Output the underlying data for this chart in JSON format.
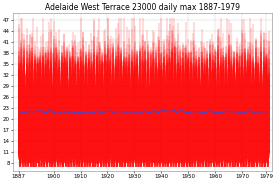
{
  "title": "Adelaide West Terrace 23000 daily max 1887-1979",
  "year_start": 1887,
  "year_end": 1979,
  "yticks": [
    8,
    11,
    14,
    17,
    20,
    23,
    26,
    29,
    32,
    35,
    38,
    41,
    44,
    47
  ],
  "ylim": [
    6,
    49
  ],
  "xlim": [
    1885,
    1981
  ],
  "xticks": [
    1887,
    1900,
    1910,
    1920,
    1930,
    1940,
    1950,
    1960,
    1970,
    1979
  ],
  "mean_line_color": "#4444cc",
  "bar_color": "#ff1111",
  "bar_alpha": 0.85,
  "background_color": "#ffffff",
  "mean_value": 21.5,
  "seasonal_amplitude": 10.5,
  "noise_scale": 4.0,
  "base_min_temp": 8.0,
  "grid_color": "#cccccc",
  "title_fontsize": 5.5,
  "tick_fontsize": 4.0,
  "mean_linewidth": 0.9,
  "figwidth": 2.77,
  "figheight": 1.82,
  "dpi": 100
}
